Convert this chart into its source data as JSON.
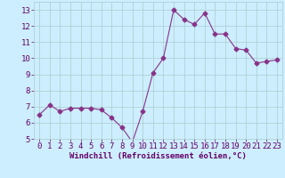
{
  "x": [
    0,
    1,
    2,
    3,
    4,
    5,
    6,
    7,
    8,
    9,
    10,
    11,
    12,
    13,
    14,
    15,
    16,
    17,
    18,
    19,
    20,
    21,
    22,
    23
  ],
  "y": [
    6.5,
    7.1,
    6.7,
    6.9,
    6.9,
    6.9,
    6.8,
    6.3,
    5.7,
    4.8,
    6.7,
    9.1,
    10.0,
    13.0,
    12.4,
    12.1,
    12.8,
    11.5,
    11.5,
    10.6,
    10.5,
    9.7,
    9.8,
    9.9
  ],
  "line_color": "#883388",
  "marker": "D",
  "marker_size": 2.5,
  "bg_color": "#cceeff",
  "grid_color": "#aacccc",
  "xlabel": "Windchill (Refroidissement éolien,°C)",
  "xlim": [
    -0.5,
    23.5
  ],
  "ylim": [
    5,
    13.5
  ],
  "yticks": [
    5,
    6,
    7,
    8,
    9,
    10,
    11,
    12,
    13
  ],
  "xticks": [
    0,
    1,
    2,
    3,
    4,
    5,
    6,
    7,
    8,
    9,
    10,
    11,
    12,
    13,
    14,
    15,
    16,
    17,
    18,
    19,
    20,
    21,
    22,
    23
  ],
  "xlabel_fontsize": 6.5,
  "tick_fontsize": 6.5,
  "label_color": "#660066"
}
